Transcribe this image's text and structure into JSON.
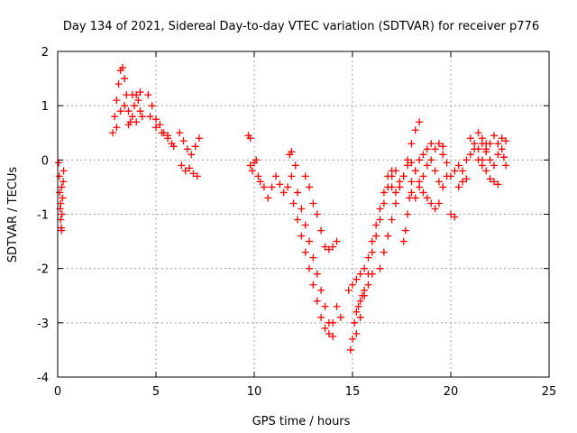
{
  "chart_data": {
    "type": "scatter",
    "title": "Day 134 of 2021, Sidereal Day-to-day VTEC variation (SDTVAR) for receiver p776",
    "xlabel": "GPS time / hours",
    "ylabel": "SDTVAR / TECUs",
    "xlim": [
      0,
      25
    ],
    "ylim": [
      -4,
      2
    ],
    "xticks": [
      0,
      5,
      10,
      15,
      20,
      25
    ],
    "yticks": [
      -4,
      -3,
      -2,
      -1,
      0,
      1,
      2
    ],
    "grid": true,
    "marker": "+",
    "color": "#ff0000",
    "series": [
      {
        "name": "SDTVAR",
        "points": [
          [
            0.05,
            -0.05
          ],
          [
            0.08,
            -0.3
          ],
          [
            0.1,
            -0.6
          ],
          [
            0.12,
            -0.9
          ],
          [
            0.15,
            -1.1
          ],
          [
            0.18,
            -1.25
          ],
          [
            0.2,
            -1.3
          ],
          [
            0.22,
            -1.0
          ],
          [
            0.25,
            -0.7
          ],
          [
            0.28,
            -0.4
          ],
          [
            0.3,
            -0.2
          ],
          [
            0.2,
            -0.5
          ],
          [
            0.15,
            -0.8
          ],
          [
            2.8,
            0.5
          ],
          [
            2.9,
            0.8
          ],
          [
            3.0,
            1.1
          ],
          [
            3.1,
            1.4
          ],
          [
            3.2,
            1.65
          ],
          [
            3.3,
            1.7
          ],
          [
            3.4,
            1.5
          ],
          [
            3.5,
            1.2
          ],
          [
            3.6,
            0.9
          ],
          [
            3.7,
            0.7
          ],
          [
            3.8,
            0.8
          ],
          [
            3.9,
            1.0
          ],
          [
            4.0,
            1.2
          ],
          [
            4.1,
            1.1
          ],
          [
            4.2,
            0.9
          ],
          [
            4.3,
            0.8
          ],
          [
            3.0,
            0.6
          ],
          [
            3.2,
            0.9
          ],
          [
            3.4,
            1.0
          ],
          [
            3.6,
            0.65
          ],
          [
            3.8,
            1.2
          ],
          [
            4.0,
            0.7
          ],
          [
            4.2,
            1.25
          ],
          [
            4.6,
            1.2
          ],
          [
            4.8,
            1.0
          ],
          [
            5.0,
            0.75
          ],
          [
            5.2,
            0.65
          ],
          [
            5.4,
            0.5
          ],
          [
            5.6,
            0.4
          ],
          [
            5.8,
            0.3
          ],
          [
            4.7,
            0.8
          ],
          [
            5.0,
            0.6
          ],
          [
            5.3,
            0.5
          ],
          [
            5.6,
            0.45
          ],
          [
            5.9,
            0.25
          ],
          [
            6.2,
            0.5
          ],
          [
            6.4,
            0.35
          ],
          [
            6.6,
            0.2
          ],
          [
            6.8,
            0.1
          ],
          [
            7.0,
            0.25
          ],
          [
            7.2,
            0.4
          ],
          [
            6.3,
            -0.1
          ],
          [
            6.5,
            -0.2
          ],
          [
            6.7,
            -0.15
          ],
          [
            6.9,
            -0.25
          ],
          [
            7.1,
            -0.3
          ],
          [
            9.7,
            0.45
          ],
          [
            9.8,
            0.4
          ],
          [
            9.8,
            -0.1
          ],
          [
            9.9,
            -0.2
          ],
          [
            10.0,
            -0.05
          ],
          [
            10.1,
            0.0
          ],
          [
            10.2,
            -0.3
          ],
          [
            10.3,
            -0.4
          ],
          [
            10.5,
            -0.5
          ],
          [
            10.7,
            -0.7
          ],
          [
            10.9,
            -0.5
          ],
          [
            11.1,
            -0.3
          ],
          [
            11.3,
            -0.45
          ],
          [
            11.5,
            -0.6
          ],
          [
            11.7,
            -0.5
          ],
          [
            11.9,
            -0.3
          ],
          [
            12.1,
            -0.1
          ],
          [
            11.8,
            0.1
          ],
          [
            11.9,
            0.15
          ],
          [
            12.0,
            -0.8
          ],
          [
            12.2,
            -1.1
          ],
          [
            12.4,
            -1.4
          ],
          [
            12.6,
            -1.7
          ],
          [
            12.8,
            -2.0
          ],
          [
            13.0,
            -2.3
          ],
          [
            13.2,
            -2.6
          ],
          [
            13.4,
            -2.9
          ],
          [
            13.6,
            -3.1
          ],
          [
            13.8,
            -3.2
          ],
          [
            14.0,
            -3.0
          ],
          [
            14.2,
            -2.7
          ],
          [
            14.4,
            -2.9
          ],
          [
            12.2,
            -0.6
          ],
          [
            12.4,
            -0.9
          ],
          [
            12.6,
            -1.2
          ],
          [
            12.8,
            -1.5
          ],
          [
            13.0,
            -1.8
          ],
          [
            13.2,
            -2.1
          ],
          [
            13.4,
            -2.4
          ],
          [
            13.6,
            -2.7
          ],
          [
            13.8,
            -3.0
          ],
          [
            14.0,
            -3.25
          ],
          [
            12.6,
            -0.3
          ],
          [
            12.8,
            -0.5
          ],
          [
            13.0,
            -0.8
          ],
          [
            13.2,
            -1.0
          ],
          [
            13.4,
            -1.3
          ],
          [
            13.6,
            -1.6
          ],
          [
            13.8,
            -1.65
          ],
          [
            14.0,
            -1.6
          ],
          [
            14.2,
            -1.5
          ],
          [
            14.9,
            -3.5
          ],
          [
            15.0,
            -3.3
          ],
          [
            15.1,
            -3.0
          ],
          [
            15.2,
            -2.8
          ],
          [
            15.3,
            -2.7
          ],
          [
            15.4,
            -2.6
          ],
          [
            15.5,
            -2.5
          ],
          [
            15.6,
            -2.4
          ],
          [
            15.8,
            -2.3
          ],
          [
            16.0,
            -2.1
          ],
          [
            14.8,
            -2.4
          ],
          [
            15.0,
            -2.3
          ],
          [
            15.2,
            -2.2
          ],
          [
            15.4,
            -2.1
          ],
          [
            15.6,
            -2.0
          ],
          [
            15.8,
            -1.8
          ],
          [
            16.0,
            -1.5
          ],
          [
            16.2,
            -1.2
          ],
          [
            16.4,
            -0.9
          ],
          [
            16.6,
            -0.6
          ],
          [
            16.8,
            -0.3
          ],
          [
            17.0,
            -0.2
          ],
          [
            15.2,
            -3.2
          ],
          [
            15.4,
            -2.9
          ],
          [
            15.6,
            -2.5
          ],
          [
            15.8,
            -2.1
          ],
          [
            16.0,
            -1.7
          ],
          [
            16.2,
            -1.4
          ],
          [
            16.4,
            -1.1
          ],
          [
            16.6,
            -0.8
          ],
          [
            16.8,
            -0.5
          ],
          [
            17.0,
            -0.3
          ],
          [
            17.2,
            -0.2
          ],
          [
            16.4,
            -2.0
          ],
          [
            16.6,
            -1.7
          ],
          [
            16.8,
            -1.4
          ],
          [
            17.0,
            -1.1
          ],
          [
            17.2,
            -0.8
          ],
          [
            17.4,
            -0.5
          ],
          [
            17.6,
            -0.3
          ],
          [
            17.8,
            0.0
          ],
          [
            18.0,
            0.3
          ],
          [
            18.2,
            0.55
          ],
          [
            18.4,
            0.7
          ],
          [
            17.6,
            -1.5
          ],
          [
            17.7,
            -1.3
          ],
          [
            17.8,
            -1.0
          ],
          [
            17.9,
            -0.7
          ],
          [
            18.0,
            -0.4
          ],
          [
            18.2,
            -0.2
          ],
          [
            18.4,
            0.0
          ],
          [
            18.6,
            0.1
          ],
          [
            18.8,
            0.2
          ],
          [
            19.0,
            0.3
          ],
          [
            19.2,
            0.2
          ],
          [
            19.4,
            0.3
          ],
          [
            19.6,
            0.25
          ],
          [
            17.0,
            -0.5
          ],
          [
            17.2,
            -0.6
          ],
          [
            17.4,
            -0.4
          ],
          [
            17.6,
            -0.3
          ],
          [
            17.8,
            -0.1
          ],
          [
            18.0,
            -0.05
          ],
          [
            18.2,
            -0.2
          ],
          [
            18.4,
            -0.4
          ],
          [
            18.6,
            -0.6
          ],
          [
            18.8,
            -0.7
          ],
          [
            19.0,
            -0.8
          ],
          [
            19.2,
            -0.9
          ],
          [
            19.4,
            -0.8
          ],
          [
            18.0,
            -0.6
          ],
          [
            18.2,
            -0.7
          ],
          [
            18.4,
            -0.5
          ],
          [
            18.6,
            -0.3
          ],
          [
            18.8,
            -0.1
          ],
          [
            19.0,
            0.0
          ],
          [
            19.2,
            -0.2
          ],
          [
            19.4,
            -0.4
          ],
          [
            19.6,
            -0.5
          ],
          [
            19.8,
            -0.3
          ],
          [
            19.6,
            0.1
          ],
          [
            19.8,
            -0.05
          ],
          [
            20.0,
            -0.3
          ],
          [
            20.2,
            -0.2
          ],
          [
            20.4,
            -0.1
          ],
          [
            20.6,
            -0.2
          ],
          [
            20.8,
            0.0
          ],
          [
            21.0,
            0.1
          ],
          [
            21.2,
            0.3
          ],
          [
            21.4,
            0.5
          ],
          [
            21.6,
            0.4
          ],
          [
            21.8,
            0.3
          ],
          [
            20.0,
            -1.0
          ],
          [
            20.2,
            -1.05
          ],
          [
            20.4,
            -0.5
          ],
          [
            20.6,
            -0.4
          ],
          [
            20.8,
            -0.35
          ],
          [
            21.0,
            0.4
          ],
          [
            21.2,
            0.2
          ],
          [
            21.4,
            0.0
          ],
          [
            21.6,
            -0.1
          ],
          [
            21.8,
            -0.2
          ],
          [
            22.0,
            -0.35
          ],
          [
            22.2,
            -0.4
          ],
          [
            22.4,
            -0.45
          ],
          [
            21.6,
            0.3
          ],
          [
            21.8,
            0.2
          ],
          [
            22.0,
            0.0
          ],
          [
            22.2,
            -0.1
          ],
          [
            22.4,
            0.1
          ],
          [
            22.6,
            0.2
          ],
          [
            22.8,
            0.35
          ],
          [
            22.7,
            0.05
          ],
          [
            22.8,
            -0.1
          ],
          [
            21.4,
            0.2
          ],
          [
            21.6,
            0.0
          ],
          [
            21.8,
            0.15
          ],
          [
            22.0,
            0.3
          ],
          [
            22.2,
            0.45
          ],
          [
            22.4,
            0.3
          ],
          [
            22.6,
            0.4
          ]
        ]
      }
    ]
  }
}
